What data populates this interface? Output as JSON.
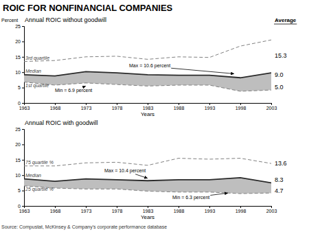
{
  "title": "ROIC FOR NONFINANCIAL COMPANIES",
  "source": "Source: Compustat, McKinsey & Company’s corporate performance database",
  "average_label": "Average",
  "chart_data": [
    {
      "type": "line",
      "title": "Annual ROIC without goodwill",
      "x_label": "Years",
      "y_label": "Percent",
      "x": [
        1963,
        1968,
        1973,
        1978,
        1983,
        1988,
        1993,
        1998,
        2003
      ],
      "xlim": [
        1963,
        2003
      ],
      "xticks": [
        1963,
        1968,
        1973,
        1978,
        1983,
        1988,
        1993,
        1998,
        2003
      ],
      "ylim": [
        0,
        25
      ],
      "yticks": [
        0,
        5,
        10,
        15,
        20,
        25
      ],
      "series": [
        {
          "name": "3rd quartile",
          "color": "#808080",
          "line_style": "dashed",
          "values": [
            13.5,
            13.8,
            15.0,
            15.2,
            14.2,
            15.0,
            14.8,
            18.5,
            20.5
          ],
          "average": {
            "value": 15.3,
            "label": "15.3"
          }
        },
        {
          "name": "Median",
          "color": "#2a2a2a",
          "line_style": "solid",
          "values": [
            9.2,
            8.8,
            10.2,
            9.8,
            9.2,
            9.0,
            9.0,
            8.2,
            9.8
          ],
          "average": {
            "value": 9.0,
            "label": "9.0"
          }
        },
        {
          "name": "1st quartile",
          "color": "#808080",
          "line_style": "dashed",
          "values": [
            6.8,
            5.8,
            6.5,
            6.0,
            5.5,
            5.8,
            5.8,
            3.8,
            4.2
          ],
          "average": {
            "value": 5.0,
            "label": "5.0"
          }
        }
      ],
      "fill": {
        "color": "#BEBEBE",
        "upper": "Median",
        "lower": "1st quartile"
      },
      "annotations": [
        {
          "text": "Max = 10.6 percent",
          "xy": [
            1997,
            9.5
          ],
          "xytext": [
            1980,
            11.5
          ]
        },
        {
          "text": "Min = 6.9 percent",
          "xy": [
            1973,
            5.5
          ],
          "xytext": [
            1968,
            3.5
          ]
        }
      ]
    },
    {
      "type": "line",
      "title": "Annual ROIC with goodwill",
      "x_label": "Years",
      "x": [
        1963,
        1968,
        1973,
        1978,
        1983,
        1988,
        1993,
        1998,
        2003
      ],
      "xlim": [
        1963,
        2003
      ],
      "xticks": [
        1963,
        1968,
        1973,
        1978,
        1983,
        1988,
        1993,
        1998,
        2003
      ],
      "ylim": [
        0,
        25
      ],
      "yticks": [
        0,
        5,
        10,
        15,
        20,
        25
      ],
      "series": [
        {
          "name": "75 quartile %",
          "color": "#808080",
          "line_style": "dashed",
          "values": [
            13.0,
            13.0,
            14.0,
            14.2,
            13.2,
            15.5,
            15.2,
            15.5,
            13.8
          ],
          "average": {
            "value": 13.6,
            "label": "13.6"
          }
        },
        {
          "name": "Median",
          "color": "#2a2a2a",
          "line_style": "solid",
          "values": [
            8.8,
            8.0,
            8.8,
            8.5,
            8.2,
            8.5,
            8.5,
            9.2,
            7.5
          ],
          "average": {
            "value": 8.3,
            "label": "8.3"
          }
        },
        {
          "name": "25 quartile %",
          "color": "#808080",
          "line_style": "dashed",
          "values": [
            6.5,
            5.8,
            5.5,
            5.5,
            4.8,
            4.5,
            4.5,
            4.0,
            4.2
          ],
          "average": {
            "value": 4.7,
            "label": "4.7"
          }
        }
      ],
      "fill": {
        "color": "#BEBEBE",
        "upper": "Median",
        "lower": "25 quartile %"
      },
      "annotations": [
        {
          "text": "Max = 10.4 percent",
          "xy": [
            1983,
            9.0
          ],
          "xytext": [
            1976,
            11.0
          ]
        },
        {
          "text": "Min = 6.3 percent",
          "xy": [
            1996,
            4.2
          ],
          "xytext": [
            1987,
            2.2
          ]
        }
      ]
    }
  ]
}
